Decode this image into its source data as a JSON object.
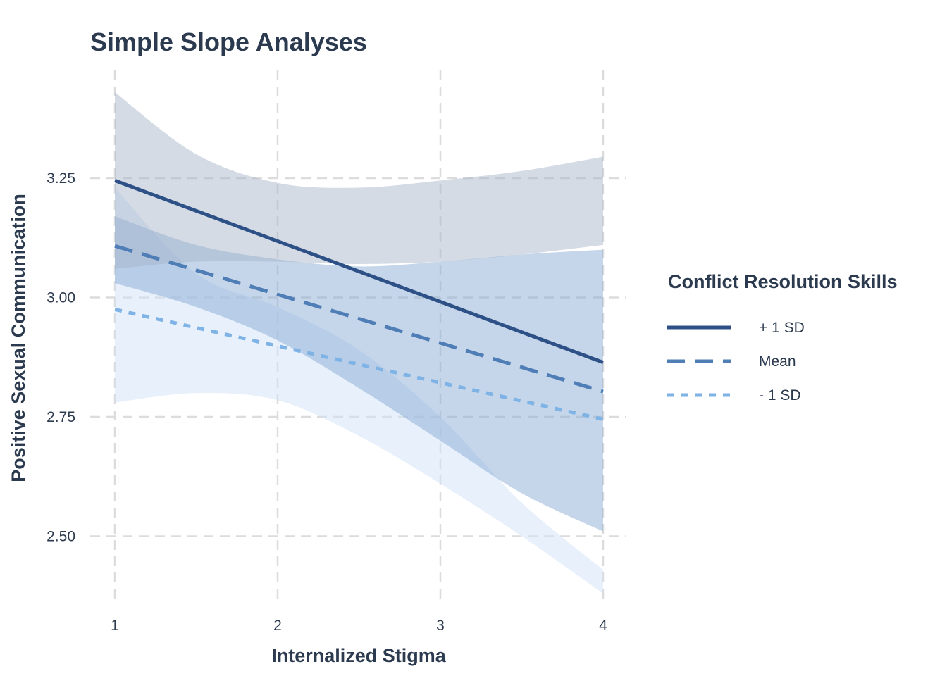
{
  "chart_data": {
    "type": "line",
    "title": "Simple Slope Analyses",
    "xlabel": "Internalized Stigma",
    "ylabel": "Positive Sexual Communication",
    "xlim": [
      1,
      4
    ],
    "ylim": [
      2.34,
      3.48
    ],
    "x_ticks": [
      1,
      2,
      3,
      4
    ],
    "y_ticks": [
      2.5,
      2.75,
      3.0,
      3.25
    ],
    "x_tick_labels": [
      "1",
      "2",
      "3",
      "4"
    ],
    "y_tick_labels": [
      "2.50",
      "2.75",
      "3.00",
      "3.25"
    ],
    "grid": true,
    "legend": {
      "title": "Conflict Resolution Skills",
      "placement": "right"
    },
    "x": [
      1,
      1.5,
      2,
      2.5,
      3,
      3.5,
      4
    ],
    "series": [
      {
        "name": "+ 1 SD",
        "line_style": "solid",
        "color": "#2d5086",
        "band_color": "#a6b3c9",
        "values": [
          3.245,
          3.181,
          3.118,
          3.054,
          2.991,
          2.927,
          2.864
        ],
        "lower": [
          3.06,
          3.075,
          3.075,
          3.07,
          3.075,
          3.09,
          3.11
        ],
        "upper": [
          3.43,
          3.3,
          3.24,
          3.23,
          3.245,
          3.265,
          3.295
        ]
      },
      {
        "name": "Mean",
        "line_style": "dashed",
        "color": "#4f7db5",
        "band_color": "#86a9d3",
        "values": [
          3.108,
          3.057,
          3.006,
          2.955,
          2.905,
          2.854,
          2.803
        ],
        "lower": [
          3.03,
          2.98,
          2.91,
          2.81,
          2.7,
          2.59,
          2.51
        ],
        "upper": [
          3.17,
          3.11,
          3.08,
          3.065,
          3.075,
          3.09,
          3.1
        ]
      },
      {
        "name": "- 1 SD",
        "line_style": "dotted",
        "color": "#7fb3e5",
        "band_color": "#cfe2f7",
        "values": [
          2.975,
          2.934,
          2.893,
          2.852,
          2.812,
          2.778,
          2.745
        ],
        "lower": [
          2.78,
          2.8,
          2.785,
          2.71,
          2.61,
          2.5,
          2.38
        ],
        "upper": [
          3.23,
          3.05,
          2.98,
          2.89,
          2.75,
          2.57,
          2.43
        ]
      }
    ]
  }
}
